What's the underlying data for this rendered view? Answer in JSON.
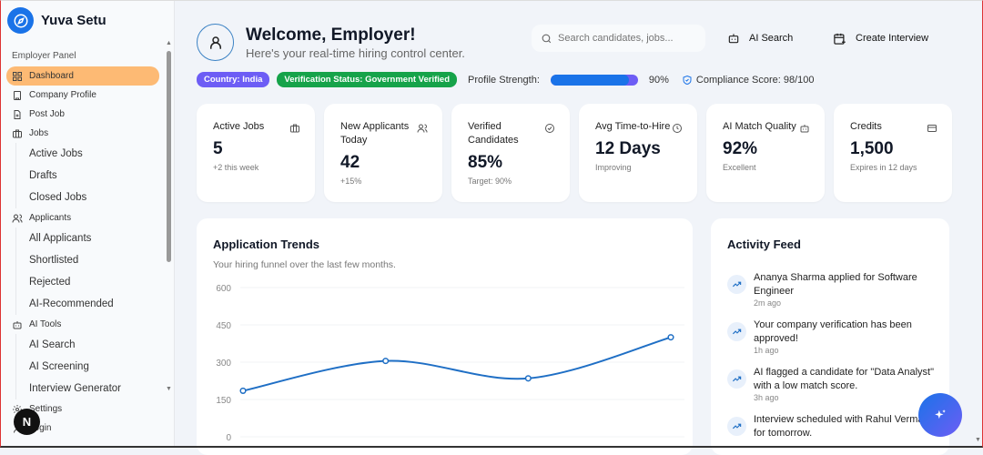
{
  "brand": {
    "name": "Yuva Setu"
  },
  "sidebar": {
    "section": "Employer Panel",
    "items": [
      {
        "label": "Dashboard",
        "icon": "grid-icon",
        "active": true
      },
      {
        "label": "Company Profile",
        "icon": "building-icon"
      },
      {
        "label": "Post Job",
        "icon": "file-plus-icon"
      },
      {
        "label": "Jobs",
        "icon": "briefcase-icon",
        "children": [
          "Active Jobs",
          "Drafts",
          "Closed Jobs"
        ]
      },
      {
        "label": "Applicants",
        "icon": "users-icon",
        "children": [
          "All Applicants",
          "Shortlisted",
          "Rejected",
          "AI-Recommended"
        ]
      },
      {
        "label": "AI Tools",
        "icon": "bot-icon",
        "children": [
          "AI Search",
          "AI Screening",
          "Interview Generator"
        ]
      },
      {
        "label": "Settings",
        "icon": "gear-icon"
      },
      {
        "label": "Login",
        "icon": "user-icon"
      }
    ],
    "badge": "N"
  },
  "header": {
    "title": "Welcome, Employer!",
    "subtitle": "Here's your real-time hiring control center.",
    "search_placeholder": "Search candidates, jobs...",
    "ai_search": "AI Search",
    "create_interview": "Create Interview"
  },
  "status": {
    "country": "Country: India",
    "verification": "Verification Status: Government Verified",
    "profile_label": "Profile Strength:",
    "profile_value": 90,
    "profile_text": "90%",
    "compliance": "Compliance Score: 98/100",
    "colors": {
      "country": "#6d5df5",
      "verification": "#16a34a",
      "accent": "#1a73e8"
    }
  },
  "cards": [
    {
      "label": "Active Jobs",
      "value": "5",
      "note": "+2 this week",
      "icon": "briefcase-icon"
    },
    {
      "label": "New Applicants Today",
      "value": "42",
      "note": "+15%",
      "icon": "users-icon"
    },
    {
      "label": "Verified Candidates",
      "value": "85%",
      "note": "Target: 90%",
      "icon": "check-circle-icon"
    },
    {
      "label": "Avg Time-to-Hire",
      "value": "12 Days",
      "note": "Improving",
      "icon": "clock-icon"
    },
    {
      "label": "AI Match Quality",
      "value": "92%",
      "note": "Excellent",
      "icon": "bot-icon"
    },
    {
      "label": "Credits",
      "value": "1,500",
      "note": "Expires in 12 days",
      "icon": "credit-card-icon"
    }
  ],
  "trends": {
    "title": "Application Trends",
    "desc": "Your hiring funnel over the last few months."
  },
  "chart_data": {
    "type": "line",
    "values": [
      185,
      305,
      235,
      400
    ],
    "ylim": [
      0,
      600
    ],
    "yticks": [
      "0",
      "150",
      "300",
      "450",
      "600"
    ],
    "grid": true,
    "color": "#1f6fc5",
    "smooth": true
  },
  "feed": {
    "title": "Activity Feed",
    "items": [
      {
        "text": "Ananya Sharma applied for Software Engineer",
        "time": "2m ago"
      },
      {
        "text": "Your company verification has been approved!",
        "time": "1h ago"
      },
      {
        "text": "AI flagged a candidate for \"Data Analyst\" with a low match score.",
        "time": "3h ago"
      },
      {
        "text": "Interview scheduled with Rahul Verma for tomorrow.",
        "time": ""
      }
    ]
  }
}
